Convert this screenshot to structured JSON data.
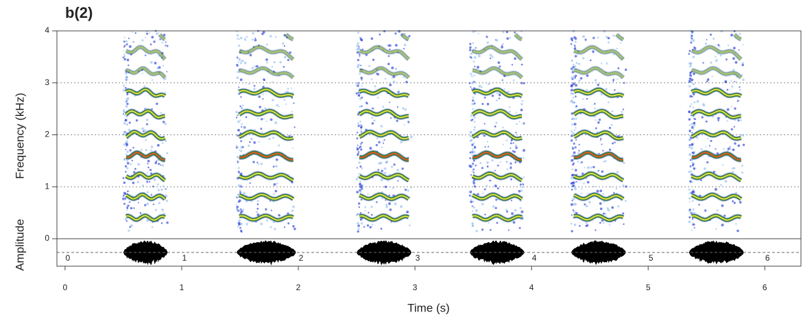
{
  "chart_data": {
    "type": "spectrogram",
    "title": "b(2)",
    "x_label": "Time (s)",
    "y_label": "Frequency (kHz)",
    "amplitude_label": "Amplitude",
    "xlim": [
      -0.07,
      6.31
    ],
    "xticks": [
      0,
      1,
      2,
      3,
      4,
      5,
      6
    ],
    "ylim": [
      0,
      4
    ],
    "yticks": [
      0,
      1,
      2,
      3,
      4
    ],
    "grid": true,
    "calls": [
      {
        "start": 0.5,
        "end": 0.88
      },
      {
        "start": 1.47,
        "end": 1.98
      },
      {
        "start": 2.5,
        "end": 2.97
      },
      {
        "start": 3.47,
        "end": 3.94
      },
      {
        "start": 4.34,
        "end": 4.81
      },
      {
        "start": 5.35,
        "end": 5.82
      }
    ]
  }
}
